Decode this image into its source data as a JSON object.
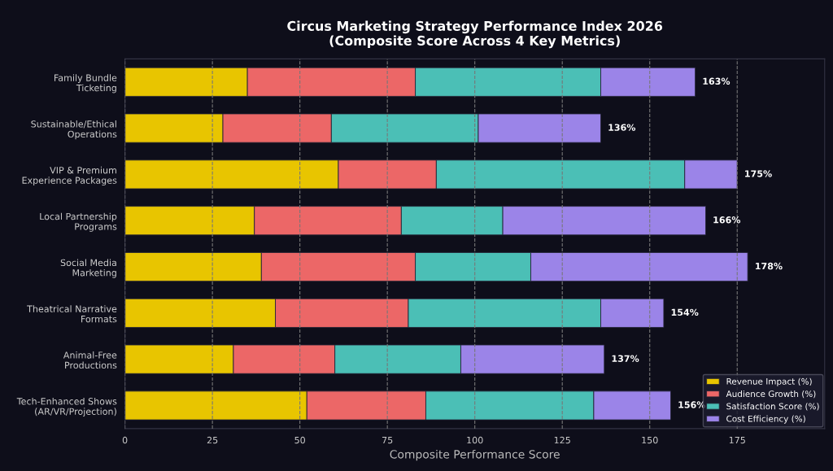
{
  "chart_data": {
    "type": "bar",
    "orientation": "horizontal",
    "stacked": true,
    "title": "Circus Marketing Strategy Performance Index 2026\n(Composite Score Across 4 Key Metrics)",
    "xlabel": "Composite Performance Score",
    "categories": [
      "Family Bundle\nTicketing",
      "Sustainable/Ethical\nOperations",
      "VIP & Premium\nExperience Packages",
      "Local Partnership\nPrograms",
      "Social Media\nMarketing",
      "Theatrical Narrative\nFormats",
      "Animal-Free\nProductions",
      "Tech-Enhanced Shows\n(AR/VR/Projection)"
    ],
    "series": [
      {
        "name": "Revenue Impact (%)",
        "color": "#e8c500",
        "values": [
          35,
          28,
          61,
          37,
          39,
          43,
          31,
          52
        ]
      },
      {
        "name": "Audience Growth (%)",
        "color": "#ec6767",
        "values": [
          48,
          31,
          28,
          42,
          44,
          38,
          29,
          34
        ]
      },
      {
        "name": "Satisfaction Score (%)",
        "color": "#4bbfb6",
        "values": [
          53,
          42,
          71,
          29,
          33,
          55,
          36,
          48
        ]
      },
      {
        "name": "Cost Efficiency (%)",
        "color": "#9b84e8",
        "values": [
          27,
          35,
          15,
          58,
          62,
          18,
          41,
          22
        ]
      }
    ],
    "totals": [
      "163%",
      "136%",
      "175%",
      "166%",
      "178%",
      "154%",
      "137%",
      "156%"
    ],
    "xlim": [
      0,
      200
    ],
    "xticks": [
      0,
      25,
      50,
      75,
      100,
      125,
      150,
      175
    ],
    "grid": "x",
    "line_style": "dashed",
    "legend": "bottom right"
  }
}
